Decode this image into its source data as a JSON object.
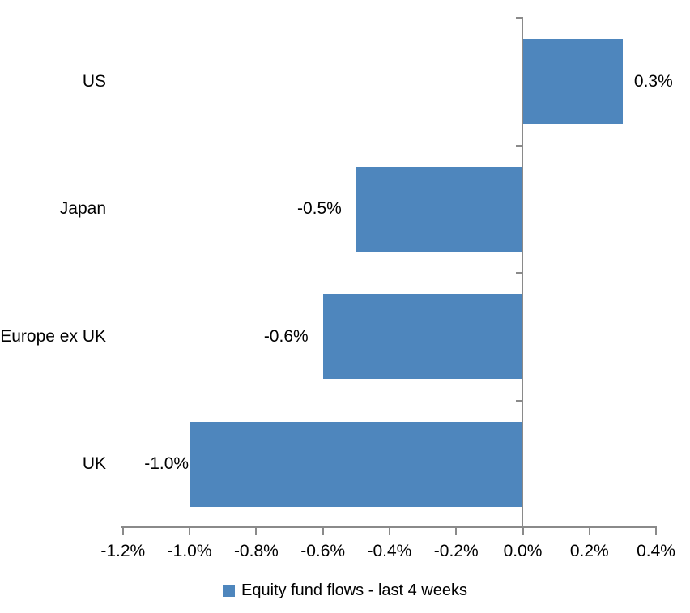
{
  "chart_data": {
    "type": "bar",
    "orientation": "horizontal",
    "title": "",
    "categories": [
      "US",
      "Japan",
      "Europe ex UK",
      "UK"
    ],
    "values": [
      0.3,
      -0.5,
      -0.6,
      -1.0
    ],
    "unit": "%",
    "data_labels": [
      "0.3%",
      "-0.5%",
      "-0.6%",
      "-1.0%"
    ],
    "x_ticks": [
      -1.2,
      -1.0,
      -0.8,
      -0.6,
      -0.4,
      -0.2,
      0.0,
      0.2,
      0.4
    ],
    "x_tick_labels": [
      "-1.2%",
      "-1.0%",
      "-0.8%",
      "-0.6%",
      "-0.4%",
      "-0.2%",
      "0.0%",
      "0.2%",
      "0.4%"
    ],
    "xlim": [
      -1.2,
      0.4
    ],
    "grid": false,
    "legend_position": "bottom",
    "legend": [
      {
        "label": "Equity fund flows - last 4 weeks",
        "color": "#4E86BD"
      }
    ],
    "colors": {
      "bar": "#4E86BD",
      "axis": "#8A8A8A",
      "text": "#000000",
      "background": "#FFFFFF"
    }
  }
}
